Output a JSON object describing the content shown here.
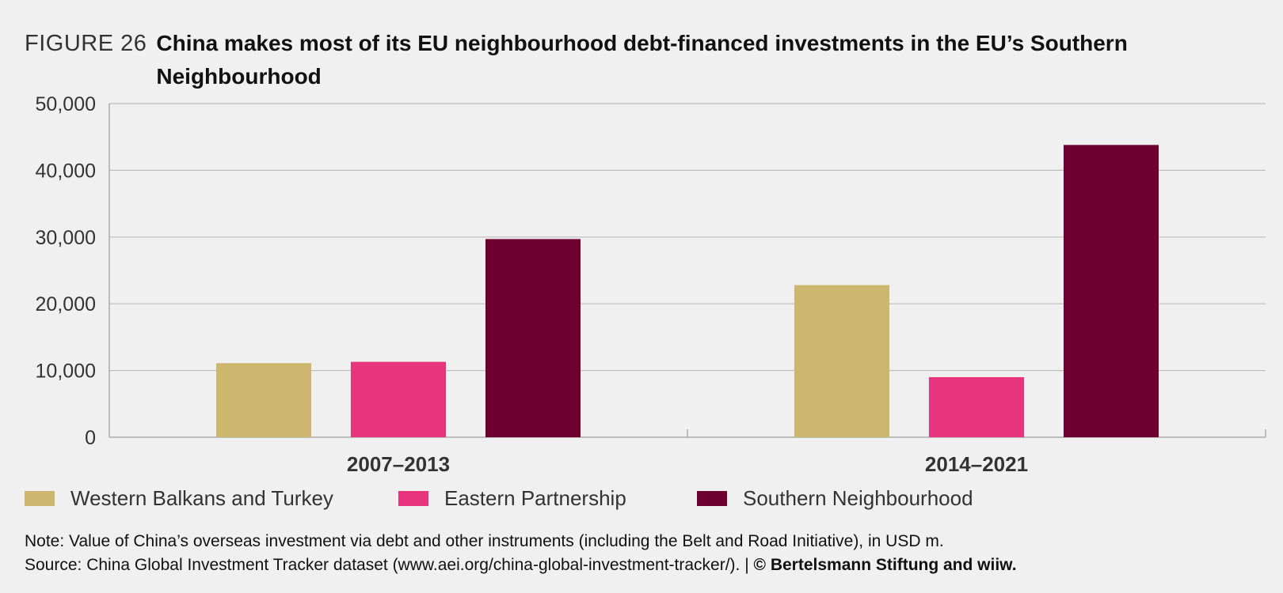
{
  "figure": {
    "label": "FIGURE 26",
    "title": "China makes most of its EU neighbourhood debt-financed investments in the EU’s Southern Neighbourhood"
  },
  "chart_data": {
    "type": "bar",
    "categories": [
      "2007–2013",
      "2014–2021"
    ],
    "series": [
      {
        "name": "Western Balkans and Turkey",
        "values": [
          11100,
          22800
        ],
        "color": "#cdb66e"
      },
      {
        "name": "Eastern Partnership",
        "values": [
          11300,
          9000
        ],
        "color": "#e8337d"
      },
      {
        "name": "Southern Neighbourhood",
        "values": [
          29700,
          43800
        ],
        "color": "#6e0030"
      }
    ],
    "ylim": [
      0,
      50000
    ],
    "yticks": [
      "0",
      "10,000",
      "20,000",
      "30,000",
      "40,000",
      "50,000"
    ],
    "grid": true,
    "legend_position": "bottom"
  },
  "notes": {
    "note": "Note: Value of China’s overseas investment via debt and other instruments (including the Belt and Road Initiative), in USD m.",
    "source": "Source: China Global Investment Tracker dataset (www.aei.org/china-global-investment-tracker/).  |  ",
    "copyright": "© Bertelsmann Stiftung and wiiw."
  }
}
